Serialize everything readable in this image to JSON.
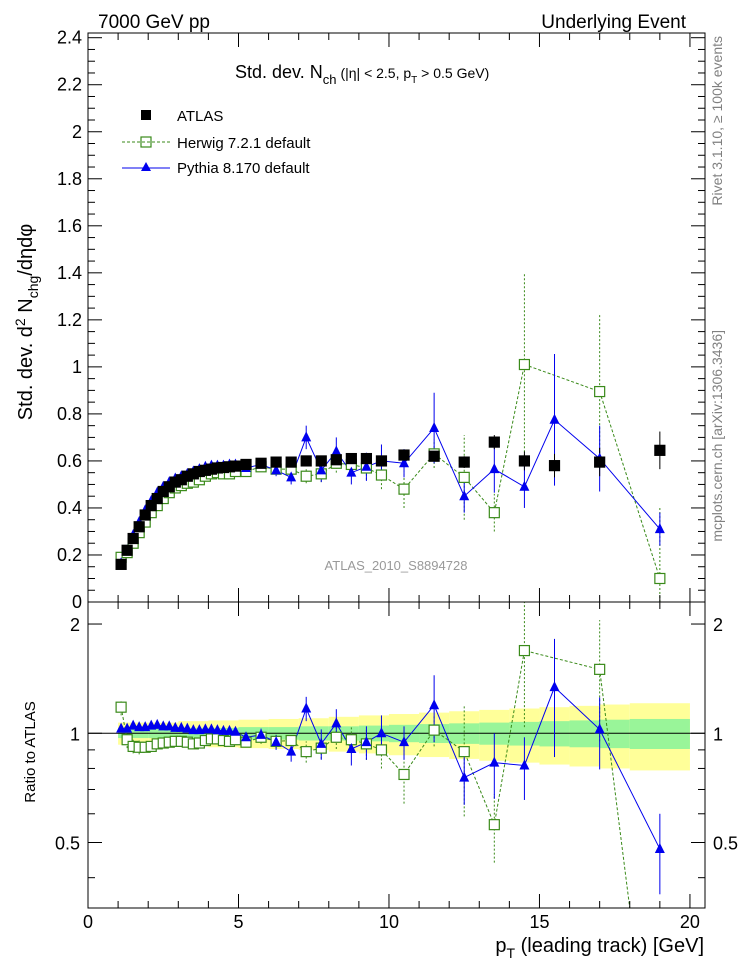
{
  "header": {
    "left": "7000 GeV pp",
    "right": "Underlying Event"
  },
  "side_labels": {
    "rivet": "Rivet 3.1.10, ≥ 100k events",
    "mcplots": "mcplots.cern.ch [arXiv:1306.3436]"
  },
  "colors": {
    "atlas": "#000000",
    "herwig": "#3a8a1a",
    "pythia": "#0000ee",
    "band_inner": "#99f599",
    "band_outer": "#ffff99"
  },
  "chart_data": [
    {
      "type": "scatter",
      "title": {
        "main": "Std. dev. N",
        "main_sub": "ch",
        "cond": "(|η| < 2.5, p",
        "cond_sub": "T",
        "cond_tail": " > 0.5 GeV)"
      },
      "ylabel": {
        "a": "Std. dev. d",
        "sup": "2",
        "b": " N",
        "sub": "chg",
        "c": "/dηdφ"
      },
      "watermark": "ATLAS_2010_S8894728",
      "xlim": [
        0,
        20.5
      ],
      "ylim": [
        0,
        2.42
      ],
      "yticks": [
        "0",
        "0.2",
        "0.4",
        "0.6",
        "0.8",
        "1",
        "1.2",
        "1.4",
        "1.6",
        "1.8",
        "2",
        "2.2",
        "2.4"
      ],
      "legend_position": "top-left",
      "legend": [
        "ATLAS",
        "Herwig 7.2.1 default",
        "Pythia 8.170 default"
      ],
      "series": [
        {
          "name": "ATLAS",
          "x": [
            1.1,
            1.3,
            1.5,
            1.7,
            1.9,
            2.1,
            2.3,
            2.5,
            2.7,
            2.9,
            3.1,
            3.3,
            3.5,
            3.7,
            3.9,
            4.1,
            4.3,
            4.5,
            4.7,
            4.9,
            5.25,
            5.75,
            6.25,
            6.75,
            7.25,
            7.75,
            8.25,
            8.75,
            9.25,
            9.75,
            10.5,
            11.5,
            12.5,
            13.5,
            14.5,
            15.5,
            17.0,
            19.0
          ],
          "y": [
            0.16,
            0.22,
            0.27,
            0.32,
            0.37,
            0.41,
            0.44,
            0.47,
            0.49,
            0.51,
            0.52,
            0.535,
            0.545,
            0.555,
            0.56,
            0.565,
            0.57,
            0.572,
            0.575,
            0.578,
            0.585,
            0.59,
            0.595,
            0.595,
            0.6,
            0.6,
            0.605,
            0.61,
            0.61,
            0.6,
            0.625,
            0.62,
            0.595,
            0.68,
            0.6,
            0.58,
            0.595,
            0.645
          ],
          "yerr": [
            0.005,
            0.005,
            0.005,
            0.005,
            0.005,
            0.005,
            0.005,
            0.005,
            0.005,
            0.005,
            0.005,
            0.005,
            0.006,
            0.006,
            0.006,
            0.006,
            0.006,
            0.006,
            0.006,
            0.006,
            0.007,
            0.007,
            0.008,
            0.008,
            0.009,
            0.01,
            0.01,
            0.012,
            0.013,
            0.014,
            0.015,
            0.02,
            0.025,
            0.03,
            0.04,
            0.05,
            0.06,
            0.08
          ]
        },
        {
          "name": "Herwig 7.2.1 default",
          "x": [
            1.1,
            1.3,
            1.5,
            1.7,
            1.9,
            2.1,
            2.3,
            2.5,
            2.7,
            2.9,
            3.1,
            3.3,
            3.5,
            3.7,
            3.9,
            4.1,
            4.3,
            4.5,
            4.7,
            4.9,
            5.25,
            5.75,
            6.25,
            6.75,
            7.25,
            7.75,
            8.25,
            8.75,
            9.25,
            9.75,
            10.5,
            11.5,
            12.5,
            13.5,
            14.5,
            15.5,
            17.0,
            19.0
          ],
          "y": [
            0.19,
            0.21,
            0.25,
            0.295,
            0.34,
            0.38,
            0.41,
            0.44,
            0.465,
            0.485,
            0.495,
            0.505,
            0.51,
            0.52,
            0.535,
            0.545,
            0.55,
            0.545,
            0.545,
            0.555,
            0.555,
            0.575,
            0.565,
            0.565,
            0.535,
            0.545,
            0.59,
            0.585,
            0.57,
            0.54,
            0.48,
            0.63,
            0.53,
            0.38,
            1.01,
            null,
            0.895,
            0.1
          ],
          "yerr": [
            0.01,
            0.01,
            0.01,
            0.01,
            0.01,
            0.01,
            0.01,
            0.01,
            0.01,
            0.01,
            0.01,
            0.01,
            0.01,
            0.01,
            0.015,
            0.015,
            0.015,
            0.015,
            0.015,
            0.015,
            0.015,
            0.02,
            0.02,
            0.025,
            0.03,
            0.035,
            0.04,
            0.045,
            0.05,
            0.06,
            0.08,
            0.06,
            0.18,
            0.08,
            0.39,
            null,
            0.33,
            0.3
          ]
        },
        {
          "name": "Pythia 8.170 default",
          "x": [
            1.1,
            1.3,
            1.5,
            1.7,
            1.9,
            2.1,
            2.3,
            2.5,
            2.7,
            2.9,
            3.1,
            3.3,
            3.5,
            3.7,
            3.9,
            4.1,
            4.3,
            4.5,
            4.7,
            4.9,
            5.25,
            5.75,
            6.25,
            6.75,
            7.25,
            7.75,
            8.25,
            8.75,
            9.25,
            9.75,
            10.5,
            11.5,
            12.5,
            13.5,
            14.5,
            15.5,
            17.0,
            19.0
          ],
          "y": [
            0.165,
            0.22,
            0.285,
            0.34,
            0.39,
            0.43,
            0.465,
            0.49,
            0.51,
            0.525,
            0.535,
            0.545,
            0.555,
            0.565,
            0.575,
            0.58,
            0.58,
            0.58,
            0.585,
            0.585,
            0.57,
            0.585,
            0.56,
            0.53,
            0.7,
            0.56,
            0.64,
            0.55,
            0.575,
            0.6,
            0.59,
            0.74,
            0.45,
            0.565,
            0.49,
            0.775,
            0.61,
            0.31
          ],
          "yerr": [
            0.005,
            0.005,
            0.005,
            0.005,
            0.005,
            0.005,
            0.006,
            0.006,
            0.006,
            0.007,
            0.007,
            0.008,
            0.008,
            0.009,
            0.01,
            0.01,
            0.012,
            0.012,
            0.013,
            0.014,
            0.015,
            0.02,
            0.025,
            0.03,
            0.05,
            0.05,
            0.06,
            0.05,
            0.06,
            0.07,
            0.06,
            0.15,
            0.07,
            0.1,
            0.09,
            0.28,
            0.14,
            0.07
          ]
        }
      ]
    },
    {
      "type": "scatter",
      "ylabel": "Ratio to ATLAS",
      "xlabel": {
        "a": "p",
        "sub": "T",
        "b": " (leading track) [GeV]"
      },
      "xlim": [
        0,
        20.5
      ],
      "xticks": [
        "0",
        "5",
        "10",
        "15",
        "20"
      ],
      "ylim": [
        0.33,
        2.3
      ],
      "yticks": [
        "0.5",
        "1",
        "2"
      ],
      "bands": {
        "edges": [
          1.0,
          2.0,
          3.0,
          4.0,
          5.0,
          6.0,
          7.0,
          8.0,
          9.0,
          10.0,
          11.0,
          12.0,
          13.0,
          14.0,
          15.0,
          16.0,
          17.0,
          18.0,
          20.0
        ],
        "inner": [
          0.03,
          0.03,
          0.035,
          0.035,
          0.04,
          0.04,
          0.045,
          0.045,
          0.05,
          0.055,
          0.06,
          0.065,
          0.07,
          0.075,
          0.08,
          0.085,
          0.09,
          0.095
        ],
        "outer": [
          0.07,
          0.07,
          0.08,
          0.085,
          0.09,
          0.095,
          0.1,
          0.11,
          0.12,
          0.13,
          0.14,
          0.15,
          0.16,
          0.17,
          0.18,
          0.19,
          0.2,
          0.21
        ]
      },
      "series": [
        {
          "name": "Herwig 7.2.1 default",
          "x": [
            1.1,
            1.3,
            1.5,
            1.7,
            1.9,
            2.1,
            2.3,
            2.5,
            2.7,
            2.9,
            3.1,
            3.3,
            3.5,
            3.7,
            3.9,
            4.1,
            4.3,
            4.5,
            4.7,
            4.9,
            5.25,
            5.75,
            6.25,
            6.75,
            7.25,
            7.75,
            8.25,
            8.75,
            9.25,
            9.75,
            10.5,
            11.5,
            12.5,
            13.5,
            14.5,
            17.0
          ],
          "y": [
            1.18,
            0.96,
            0.92,
            0.915,
            0.915,
            0.92,
            0.935,
            0.94,
            0.945,
            0.95,
            0.95,
            0.945,
            0.935,
            0.94,
            0.955,
            0.965,
            0.965,
            0.955,
            0.95,
            0.96,
            0.945,
            0.975,
            0.95,
            0.955,
            0.89,
            0.91,
            0.975,
            0.96,
            0.935,
            0.9,
            0.77,
            1.02,
            0.89,
            0.56,
            1.69,
            1.5
          ],
          "yerr": [
            0.06,
            0.05,
            0.04,
            0.04,
            0.03,
            0.03,
            0.03,
            0.03,
            0.03,
            0.03,
            0.03,
            0.03,
            0.03,
            0.03,
            0.03,
            0.03,
            0.03,
            0.03,
            0.03,
            0.03,
            0.03,
            0.04,
            0.04,
            0.05,
            0.06,
            0.06,
            0.07,
            0.08,
            0.09,
            0.1,
            0.13,
            0.1,
            0.3,
            0.12,
            0.65,
            0.55
          ]
        },
        {
          "name": "Pythia 8.170 default",
          "x": [
            1.1,
            1.3,
            1.5,
            1.7,
            1.9,
            2.1,
            2.3,
            2.5,
            2.7,
            2.9,
            3.1,
            3.3,
            3.5,
            3.7,
            3.9,
            4.1,
            4.3,
            4.5,
            4.7,
            4.9,
            5.25,
            5.75,
            6.25,
            6.75,
            7.25,
            7.75,
            8.25,
            8.75,
            9.25,
            9.75,
            10.5,
            11.5,
            12.5,
            13.5,
            14.5,
            15.5,
            17.0,
            19.0
          ],
          "y": [
            1.03,
            1.03,
            1.05,
            1.04,
            1.04,
            1.05,
            1.055,
            1.045,
            1.045,
            1.035,
            1.035,
            1.03,
            1.02,
            1.02,
            1.025,
            1.025,
            1.02,
            1.015,
            1.015,
            1.01,
            0.975,
            0.99,
            0.945,
            0.89,
            1.17,
            0.935,
            1.065,
            0.905,
            0.945,
            1.0,
            0.945,
            1.195,
            0.755,
            0.83,
            0.815,
            1.34,
            1.025,
            0.48
          ],
          "yerr": [
            0.02,
            0.02,
            0.02,
            0.02,
            0.02,
            0.02,
            0.02,
            0.02,
            0.02,
            0.02,
            0.02,
            0.02,
            0.02,
            0.02,
            0.02,
            0.02,
            0.02,
            0.02,
            0.02,
            0.02,
            0.03,
            0.04,
            0.045,
            0.055,
            0.09,
            0.09,
            0.1,
            0.09,
            0.1,
            0.12,
            0.1,
            0.25,
            0.12,
            0.17,
            0.16,
            0.48,
            0.23,
            0.12
          ]
        }
      ]
    }
  ]
}
